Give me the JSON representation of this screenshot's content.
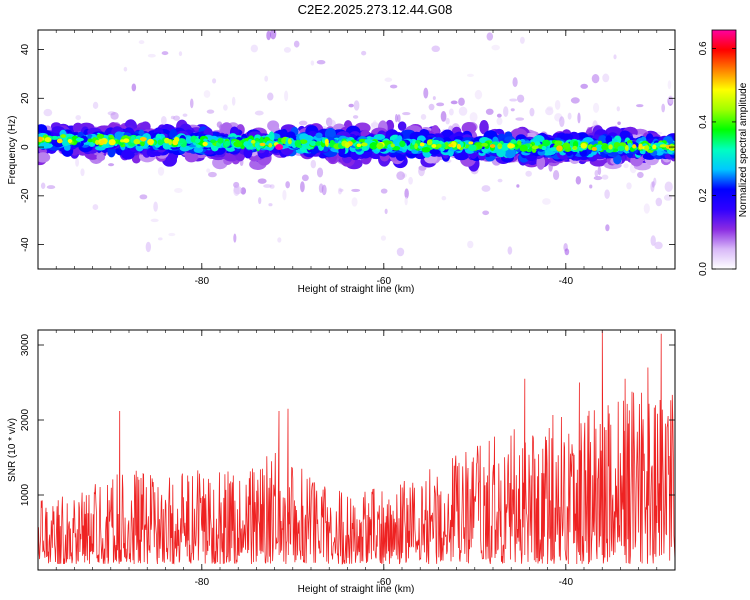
{
  "title": "C2E2.2025.273.12.44.G08",
  "chart_data": [
    {
      "type": "heatmap",
      "xlabel": "Height of straight line (km)",
      "ylabel": "Frequency (Hz)",
      "xlim": [
        -98,
        -28
      ],
      "ylim": [
        -50,
        48
      ],
      "xticks": [
        -80,
        -60,
        -40
      ],
      "yticks": [
        -40,
        -20,
        0,
        20,
        40
      ],
      "colorbar": {
        "label": "Normalized spectral amplitude",
        "range": [
          0.0,
          0.65
        ],
        "ticks": [
          "0.0",
          "0.2",
          "0.4",
          "0.6"
        ],
        "tick_values": [
          0.0,
          0.2,
          0.4,
          0.6
        ],
        "colors": [
          "#ffffff",
          "#d8b8f8",
          "#8a2be2",
          "#2f00ff",
          "#0000ff",
          "#00c8ff",
          "#00ffc0",
          "#00ff00",
          "#a0ff00",
          "#ffff00",
          "#ff8000",
          "#ff0000",
          "#ff00a0"
        ]
      },
      "band": {
        "center_hz": [
          {
            "x": -98,
            "y": 3
          },
          {
            "x": -80,
            "y": 2
          },
          {
            "x": -60,
            "y": 1
          },
          {
            "x": -40,
            "y": 0
          },
          {
            "x": -28,
            "y": 0
          }
        ],
        "halfwidth_hz": 5,
        "peak": {
          "x": -71.5,
          "y": 0,
          "value": 0.65
        }
      }
    },
    {
      "type": "line",
      "xlabel": "Height of straight line (km)",
      "ylabel": "SNR (10 * v/v)",
      "xlim": [
        -98,
        -28
      ],
      "ylim": [
        0,
        3200
      ],
      "xticks": [
        -80,
        -60,
        -40
      ],
      "yticks": [
        1000,
        2000,
        3000
      ],
      "color": "#ee2222",
      "envelope": [
        {
          "x": -98,
          "y": 850
        },
        {
          "x": -92,
          "y": 1050
        },
        {
          "x": -88,
          "y": 1300
        },
        {
          "x": -84,
          "y": 1150
        },
        {
          "x": -80,
          "y": 1300
        },
        {
          "x": -76,
          "y": 1350
        },
        {
          "x": -72,
          "y": 1500
        },
        {
          "x": -68,
          "y": 1250
        },
        {
          "x": -64,
          "y": 950
        },
        {
          "x": -60,
          "y": 1050
        },
        {
          "x": -56,
          "y": 1250
        },
        {
          "x": -52,
          "y": 1500
        },
        {
          "x": -48,
          "y": 1700
        },
        {
          "x": -44,
          "y": 1900
        },
        {
          "x": -40,
          "y": 2100
        },
        {
          "x": -36,
          "y": 2300
        },
        {
          "x": -32,
          "y": 2350
        },
        {
          "x": -28,
          "y": 2250
        }
      ],
      "spikes": [
        {
          "x": -89.0,
          "y": 2120
        },
        {
          "x": -70.5,
          "y": 2150
        },
        {
          "x": -71.5,
          "y": 2120
        },
        {
          "x": -36.0,
          "y": 3200
        },
        {
          "x": -29.5,
          "y": 3150
        },
        {
          "x": -31.0,
          "y": 2700
        },
        {
          "x": -33.5,
          "y": 2550
        },
        {
          "x": -44.5,
          "y": 2550
        },
        {
          "x": -38.5,
          "y": 2500
        }
      ]
    }
  ]
}
